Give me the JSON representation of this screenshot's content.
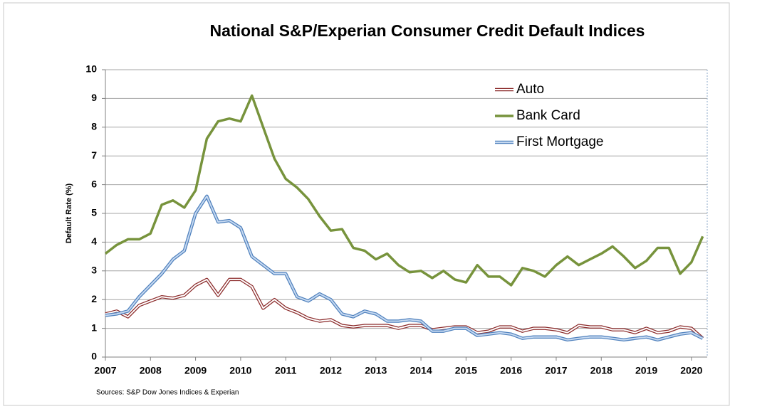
{
  "chart_data": {
    "type": "line",
    "title": "National S&P/Experian Consumer Credit Default Indices",
    "ylabel": "Default Rate (%)",
    "source": "Sources: S&P Dow Jones Indices & Experian",
    "x": [
      2007,
      2007.25,
      2007.5,
      2007.75,
      2008,
      2008.25,
      2008.5,
      2008.75,
      2009,
      2009.25,
      2009.5,
      2009.75,
      2010,
      2010.25,
      2010.5,
      2010.75,
      2011,
      2011.25,
      2011.5,
      2011.75,
      2012,
      2012.25,
      2012.5,
      2012.75,
      2013,
      2013.25,
      2013.5,
      2013.75,
      2014,
      2014.25,
      2014.5,
      2014.75,
      2015,
      2015.25,
      2015.5,
      2015.75,
      2016,
      2016.25,
      2016.5,
      2016.75,
      2017,
      2017.25,
      2017.5,
      2017.75,
      2018,
      2018.25,
      2018.5,
      2018.75,
      2019,
      2019.25,
      2019.5,
      2019.75,
      2020,
      2020.25
    ],
    "xlim": [
      2007,
      2020.35
    ],
    "xticks": [
      2007,
      2008,
      2009,
      2010,
      2011,
      2012,
      2013,
      2014,
      2015,
      2016,
      2017,
      2018,
      2019,
      2020
    ],
    "ylim": [
      0,
      10
    ],
    "yticks": [
      0,
      1,
      2,
      3,
      4,
      5,
      6,
      7,
      8,
      9,
      10
    ],
    "grid": true,
    "legend": "top-right",
    "series": [
      {
        "name": "Auto",
        "color": "#8b2a2a",
        "inner_color": "#ffffff",
        "values": [
          1.5,
          1.6,
          1.4,
          1.8,
          1.95,
          2.1,
          2.05,
          2.15,
          2.5,
          2.7,
          2.15,
          2.7,
          2.7,
          2.45,
          1.7,
          2.0,
          1.7,
          1.55,
          1.35,
          1.25,
          1.3,
          1.1,
          1.05,
          1.1,
          1.1,
          1.1,
          1.0,
          1.1,
          1.1,
          0.95,
          1.0,
          1.05,
          1.05,
          0.85,
          0.9,
          1.05,
          1.05,
          0.9,
          1.0,
          1.0,
          0.95,
          0.85,
          1.1,
          1.05,
          1.05,
          0.95,
          0.95,
          0.85,
          1.0,
          0.85,
          0.9,
          1.05,
          1.0,
          0.65
        ]
      },
      {
        "name": "Bank Card",
        "color": "#77933c",
        "values": [
          3.6,
          3.9,
          4.1,
          4.1,
          4.3,
          5.3,
          5.45,
          5.2,
          5.8,
          7.6,
          8.2,
          8.3,
          8.2,
          9.1,
          8.0,
          6.9,
          6.2,
          5.9,
          5.5,
          4.9,
          4.4,
          4.45,
          3.8,
          3.7,
          3.4,
          3.6,
          3.2,
          2.95,
          3.0,
          2.75,
          3.0,
          2.7,
          2.6,
          3.2,
          2.8,
          2.8,
          2.5,
          3.1,
          3.0,
          2.8,
          3.2,
          3.5,
          3.2,
          3.4,
          3.6,
          3.85,
          3.5,
          3.1,
          3.35,
          3.8,
          3.8,
          2.9,
          3.3,
          4.2
        ]
      },
      {
        "name": "First Mortgage",
        "color": "#4f81bd",
        "inner_color": "#c6d9f1",
        "values": [
          1.45,
          1.5,
          1.6,
          2.1,
          2.5,
          2.9,
          3.4,
          3.7,
          5.0,
          5.6,
          4.7,
          4.75,
          4.5,
          3.5,
          3.2,
          2.9,
          2.9,
          2.1,
          1.95,
          2.2,
          2.0,
          1.5,
          1.4,
          1.6,
          1.5,
          1.25,
          1.25,
          1.3,
          1.25,
          0.9,
          0.9,
          1.0,
          1.0,
          0.75,
          0.8,
          0.85,
          0.8,
          0.65,
          0.7,
          0.7,
          0.7,
          0.6,
          0.65,
          0.7,
          0.7,
          0.65,
          0.6,
          0.65,
          0.7,
          0.6,
          0.7,
          0.8,
          0.85,
          0.65
        ]
      }
    ]
  }
}
